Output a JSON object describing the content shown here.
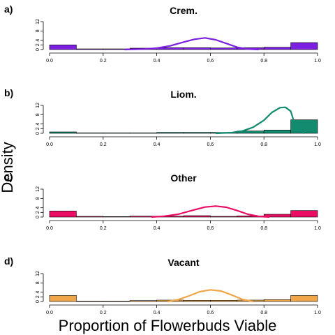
{
  "chart_data": {
    "type": "histogram_with_density",
    "xlabel": "Proportion of Flowerbuds Viable",
    "ylabel": "Density",
    "xlim": [
      0,
      1
    ],
    "ylim": [
      0,
      12
    ],
    "x_ticks": [
      "0.0",
      "0.2",
      "0.4",
      "0.6",
      "0.8",
      "1.0"
    ],
    "y_ticks": [
      "0",
      "2",
      "4",
      "8",
      "12"
    ],
    "bin_edges": [
      0,
      0.1,
      0.2,
      0.3,
      0.4,
      0.5,
      0.6,
      0.7,
      0.8,
      0.9,
      1.0
    ],
    "panels": [
      {
        "letter": "a)",
        "title": "Crem.",
        "color": "#7b1fe0",
        "hist": [
          2.0,
          0.3,
          0.3,
          0.6,
          0.8,
          0.8,
          0.7,
          0.8,
          1.0,
          3.0
        ],
        "density": {
          "x": [
            0.28,
            0.35,
            0.4,
            0.45,
            0.5,
            0.54,
            0.58,
            0.62,
            0.66,
            0.7,
            0.74,
            0.78
          ],
          "y": [
            0.0,
            0.2,
            0.6,
            1.6,
            3.2,
            4.4,
            5.0,
            4.2,
            2.6,
            1.0,
            0.2,
            0.0
          ]
        }
      },
      {
        "letter": "b)",
        "title": "Liom.",
        "color": "#128b6e",
        "hist": [
          0.6,
          0.2,
          0.2,
          0.2,
          0.4,
          0.4,
          0.4,
          1.0,
          1.4,
          5.8
        ],
        "density": {
          "x": [
            0.62,
            0.68,
            0.72,
            0.76,
            0.8,
            0.83,
            0.86,
            0.88,
            0.9,
            0.92,
            0.95
          ],
          "y": [
            0.0,
            0.3,
            1.0,
            2.6,
            5.6,
            9.0,
            11.0,
            11.2,
            9.5,
            2.0,
            0.0
          ]
        }
      },
      {
        "letter": "c)",
        "title": "Other",
        "color": "#ea0d63",
        "hist": [
          2.6,
          0.3,
          0.2,
          0.4,
          0.4,
          0.6,
          0.3,
          0.5,
          1.2,
          2.8
        ],
        "density": {
          "x": [
            0.38,
            0.43,
            0.48,
            0.53,
            0.58,
            0.62,
            0.66,
            0.7,
            0.74,
            0.78,
            0.82
          ],
          "y": [
            0.0,
            0.4,
            1.2,
            2.8,
            4.3,
            4.7,
            4.2,
            2.8,
            1.2,
            0.3,
            0.0
          ]
        }
      },
      {
        "letter": "d)",
        "title": "Vacant",
        "color": "#f0a548",
        "hist": [
          2.6,
          0.2,
          0.2,
          0.4,
          0.6,
          0.5,
          0.5,
          0.6,
          0.8,
          2.6
        ],
        "density": {
          "x": [
            0.44,
            0.48,
            0.52,
            0.56,
            0.6,
            0.64,
            0.68,
            0.72,
            0.76
          ],
          "y": [
            0.0,
            0.8,
            2.4,
            4.2,
            5.0,
            4.5,
            2.8,
            0.9,
            0.0
          ]
        }
      }
    ]
  }
}
